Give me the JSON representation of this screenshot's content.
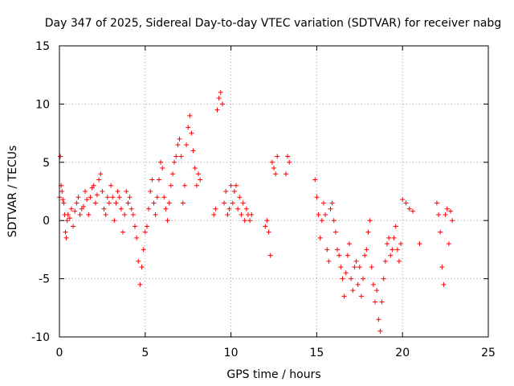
{
  "chart_data": {
    "type": "scatter",
    "title": "Day 347 of 2025, Sidereal Day-to-day VTEC variation (SDTVAR) for receiver nabg",
    "xlabel": "GPS time / hours",
    "ylabel": "SDTVAR / TECUs",
    "xlim": [
      0,
      25
    ],
    "ylim": [
      -10,
      15
    ],
    "xticks": [
      0,
      5,
      10,
      15,
      20,
      25
    ],
    "yticks": [
      -10,
      -5,
      0,
      5,
      10,
      15
    ],
    "xtick_labels": [
      "0",
      "5",
      "10",
      "15",
      "20",
      "25"
    ],
    "ytick_labels": [
      "-10",
      "-5",
      "0",
      "5",
      "10",
      "15"
    ],
    "grid": true,
    "marker": "+",
    "color": "#ff0000",
    "series": [
      {
        "name": "nabg",
        "x": [
          0.0,
          0.05,
          0.1,
          0.15,
          0.2,
          0.25,
          0.3,
          0.35,
          0.4,
          0.45,
          0.5,
          0.6,
          0.7,
          0.8,
          0.9,
          1.0,
          1.1,
          1.2,
          1.3,
          1.4,
          1.5,
          1.6,
          1.7,
          1.8,
          1.9,
          2.0,
          2.1,
          2.2,
          2.3,
          2.4,
          2.5,
          2.6,
          2.7,
          2.8,
          2.9,
          3.0,
          3.1,
          3.2,
          3.3,
          3.4,
          3.5,
          3.6,
          3.7,
          3.8,
          3.9,
          4.0,
          4.1,
          4.2,
          4.3,
          4.4,
          4.5,
          4.6,
          4.7,
          4.8,
          4.9,
          5.0,
          5.1,
          5.2,
          5.3,
          5.4,
          5.5,
          5.6,
          5.7,
          5.8,
          5.9,
          6.0,
          6.1,
          6.2,
          6.3,
          6.4,
          6.5,
          6.6,
          6.7,
          6.8,
          6.9,
          7.0,
          7.1,
          7.2,
          7.3,
          7.4,
          7.5,
          7.6,
          7.7,
          7.8,
          7.9,
          8.0,
          8.1,
          8.2,
          9.0,
          9.1,
          9.2,
          9.3,
          9.4,
          9.5,
          9.6,
          9.7,
          9.8,
          9.9,
          10.0,
          10.1,
          10.2,
          10.3,
          10.4,
          10.5,
          10.6,
          10.7,
          10.8,
          10.9,
          11.0,
          11.1,
          11.2,
          12.0,
          12.1,
          12.2,
          12.3,
          12.4,
          12.5,
          12.6,
          12.7,
          13.2,
          13.3,
          13.4,
          14.9,
          15.0,
          15.1,
          15.2,
          15.3,
          15.4,
          15.5,
          15.6,
          15.7,
          15.8,
          15.9,
          16.0,
          16.1,
          16.2,
          16.3,
          16.4,
          16.5,
          16.6,
          16.7,
          16.8,
          16.9,
          17.0,
          17.1,
          17.2,
          17.3,
          17.4,
          17.5,
          17.6,
          17.7,
          17.8,
          17.9,
          18.0,
          18.1,
          18.2,
          18.3,
          18.4,
          18.5,
          18.6,
          18.7,
          18.8,
          18.9,
          19.0,
          19.1,
          19.2,
          19.3,
          19.4,
          19.5,
          19.6,
          19.7,
          19.8,
          19.9,
          20.0,
          20.2,
          20.4,
          20.6,
          21.0,
          22.0,
          22.1,
          22.2,
          22.3,
          22.4,
          22.5,
          22.6,
          22.7,
          22.8,
          22.9
        ],
        "y": [
          2.0,
          5.5,
          3.0,
          2.5,
          1.8,
          1.5,
          0.5,
          -1.0,
          -1.5,
          0.0,
          0.5,
          0.2,
          1.0,
          -0.5,
          0.8,
          1.5,
          2.0,
          0.5,
          1.0,
          1.2,
          2.5,
          1.8,
          0.5,
          2.0,
          2.8,
          3.0,
          1.5,
          2.2,
          3.5,
          4.0,
          2.5,
          1.0,
          0.5,
          2.0,
          1.5,
          3.0,
          2.0,
          0.0,
          1.5,
          2.5,
          2.0,
          1.0,
          -1.0,
          0.5,
          2.5,
          1.5,
          2.0,
          1.0,
          0.5,
          -0.5,
          -1.5,
          -3.5,
          -5.5,
          -4.0,
          -2.5,
          -1.0,
          -0.5,
          1.0,
          2.5,
          3.5,
          1.5,
          0.5,
          2.0,
          3.5,
          5.0,
          4.5,
          2.0,
          1.0,
          0.0,
          1.5,
          3.0,
          4.0,
          5.0,
          5.5,
          6.5,
          7.0,
          5.5,
          1.5,
          3.0,
          6.5,
          8.0,
          9.0,
          7.5,
          6.0,
          4.5,
          3.0,
          4.0,
          3.5,
          0.5,
          1.0,
          9.5,
          10.5,
          11.0,
          10.0,
          1.5,
          2.5,
          0.5,
          1.0,
          3.0,
          1.5,
          2.5,
          3.0,
          1.0,
          2.0,
          0.5,
          1.5,
          0.0,
          1.0,
          0.5,
          0.0,
          0.5,
          -0.5,
          0.0,
          -1.0,
          -3.0,
          5.0,
          4.5,
          4.0,
          5.5,
          4.0,
          5.5,
          5.0,
          3.5,
          2.0,
          0.5,
          -1.5,
          0.0,
          1.5,
          0.5,
          -2.5,
          -3.5,
          1.0,
          1.5,
          0.0,
          -1.0,
          -2.5,
          -3.0,
          -4.0,
          -5.0,
          -6.5,
          -4.5,
          -3.0,
          -2.0,
          -5.0,
          -6.0,
          -4.0,
          -3.5,
          -5.5,
          -4.0,
          -6.5,
          -5.0,
          -3.0,
          -2.5,
          -1.0,
          0.0,
          -4.0,
          -5.5,
          -7.0,
          -6.0,
          -8.5,
          -9.5,
          -7.0,
          -5.0,
          -3.5,
          -2.0,
          -1.5,
          -3.0,
          -2.5,
          -1.5,
          -0.5,
          -2.5,
          -3.5,
          -2.0,
          1.8,
          1.5,
          1.0,
          0.8,
          -2.0,
          1.5,
          0.5,
          -1.0,
          -4.0,
          -5.5,
          0.5,
          1.0,
          -2.0,
          0.8,
          0.0
        ]
      }
    ]
  }
}
